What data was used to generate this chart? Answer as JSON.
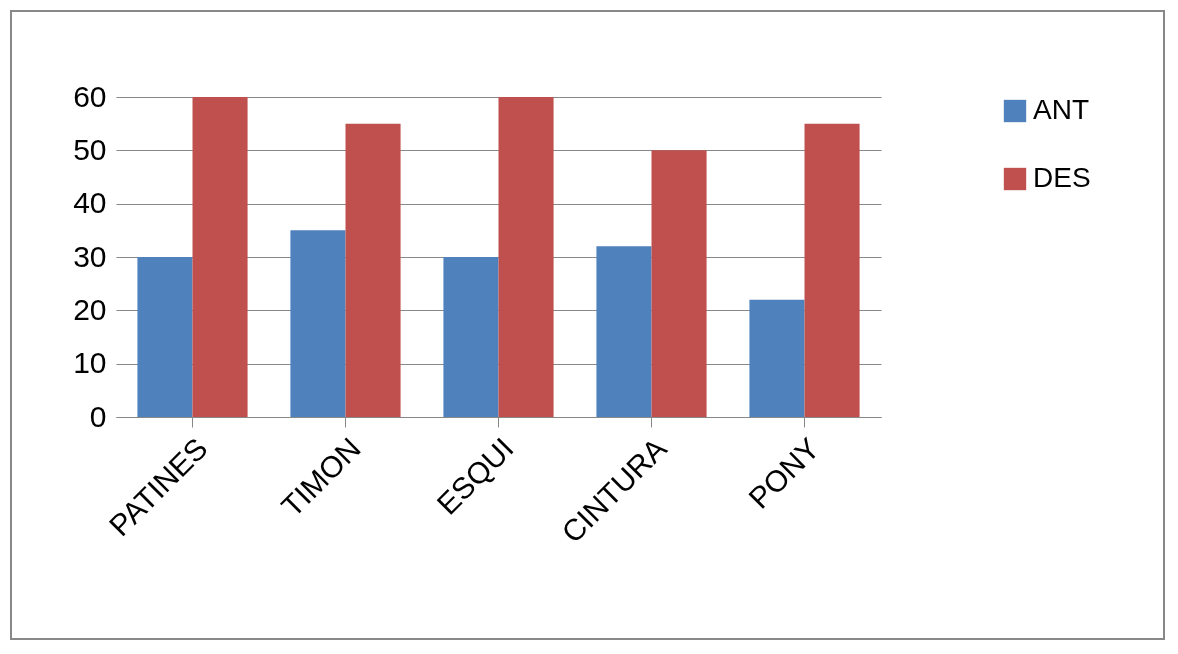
{
  "chart_data": {
    "type": "bar",
    "categories": [
      "PATINES",
      "TIMON",
      "ESQUI",
      "CINTURA",
      "PONY"
    ],
    "series": [
      {
        "name": "ANT",
        "color": "#4f81bd",
        "values": [
          30,
          35,
          30,
          32,
          22
        ]
      },
      {
        "name": "DES",
        "color": "#c0504d",
        "values": [
          60,
          55,
          60,
          50,
          55
        ]
      }
    ],
    "ylim": [
      0,
      60
    ],
    "yticks": [
      0,
      10,
      20,
      30,
      40,
      50,
      60
    ],
    "grid": "y",
    "legend": "right"
  }
}
